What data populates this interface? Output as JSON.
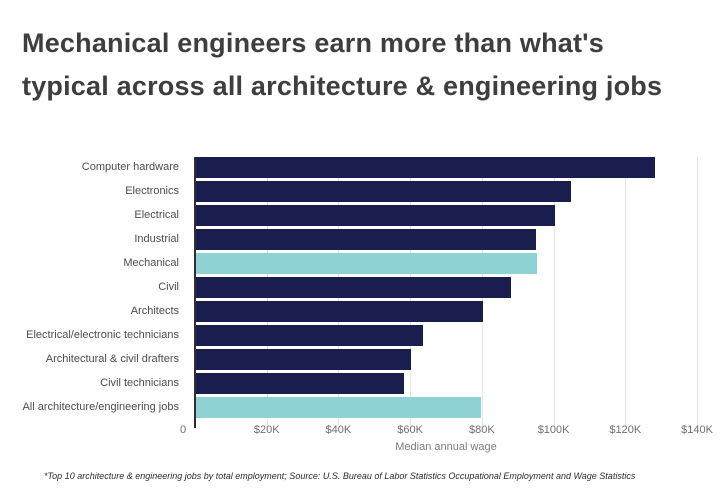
{
  "title": {
    "line1": "Mechanical engineers earn more than what's",
    "line2": "typical across all architecture & engineering jobs"
  },
  "chart_data": {
    "type": "bar",
    "orientation": "horizontal",
    "title": "Mechanical engineers earn more than what's typical across all architecture & engineering jobs",
    "categories": [
      "Computer hardware",
      "Electronics",
      "Electrical",
      "Industrial",
      "Mechanical",
      "Civil",
      "Architects",
      "Electrical/electronic technicians",
      "Architectural & civil drafters",
      "Civil technicians",
      "All architecture/engineering jobs"
    ],
    "values": [
      128170,
      104820,
      100420,
      95200,
      95300,
      88050,
      80180,
      63640,
      60340,
      58320,
      79840
    ],
    "highlight_indices": [
      4,
      10
    ],
    "highlighted_categories": [
      "Mechanical",
      "All architecture/engineering jobs"
    ],
    "xlabel": "Median annual wage",
    "x_ticks": [
      "0",
      "$20K",
      "$40K",
      "$60K",
      "$80K",
      "$100K",
      "$120K",
      "$140K"
    ],
    "x_tick_values": [
      0,
      20000,
      40000,
      60000,
      80000,
      100000,
      120000,
      140000
    ],
    "xlim": [
      0,
      140000
    ],
    "grid": true,
    "legend": false,
    "colors": {
      "bar": "#1a1e4e",
      "highlight": "#8ed2d3",
      "gridline": "#e4e4e4",
      "axis_line": "#2f2f2f",
      "title_text": "#3e3e3e",
      "label_text": "#4d4d4d",
      "tick_text": "#6f6f6f"
    }
  },
  "footnote": "*Top 10 architecture & engineering jobs by total employment; Source: U.S. Bureau of Labor Statistics Occupational Employment and Wage Statistics"
}
